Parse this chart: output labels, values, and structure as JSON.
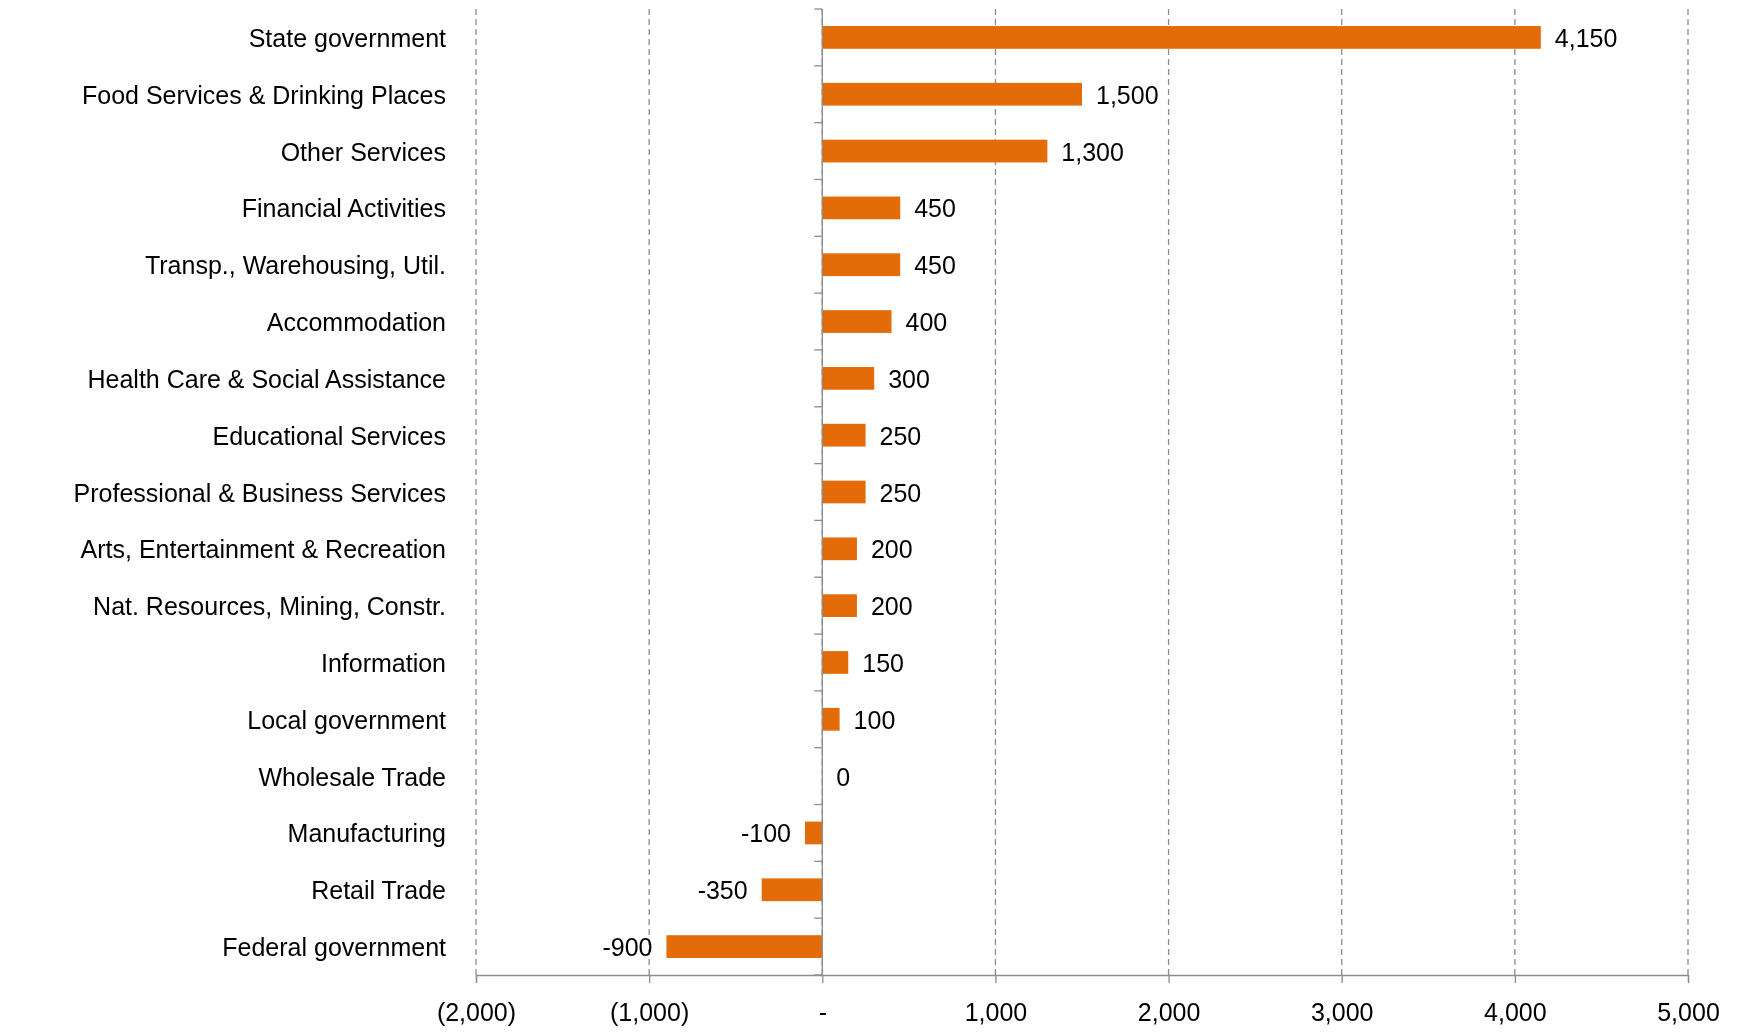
{
  "chart_data": {
    "type": "bar",
    "orientation": "horizontal",
    "categories": [
      "State government",
      "Food Services & Drinking Places",
      "Other Services",
      "Financial Activities",
      "Transp., Warehousing, Util.",
      "Accommodation",
      "Health Care & Social Assistance",
      "Educational Services",
      "Professional & Business Services",
      "Arts, Entertainment & Recreation",
      "Nat. Resources, Mining, Constr.",
      "Information",
      "Local government",
      "Wholesale Trade",
      "Manufacturing",
      "Retail Trade",
      "Federal government"
    ],
    "values": [
      4150,
      1500,
      1300,
      450,
      450,
      400,
      300,
      250,
      250,
      200,
      200,
      150,
      100,
      0,
      -100,
      -350,
      -900
    ],
    "value_labels": [
      "4,150",
      "1,500",
      "1,300",
      "450",
      "450",
      "400",
      "300",
      "250",
      "250",
      "200",
      "200",
      "150",
      "100",
      "0",
      "-100",
      "-350",
      "-900"
    ],
    "color": "#e36c09",
    "xlim": [
      -2000,
      5000
    ],
    "xticks": [
      {
        "value": -2000,
        "label": "(2,000)"
      },
      {
        "value": -1000,
        "label": "(1,000)"
      },
      {
        "value": 0,
        "label": "-"
      },
      {
        "value": 1000,
        "label": "1,000"
      },
      {
        "value": 2000,
        "label": "2,000"
      },
      {
        "value": 3000,
        "label": "3,000"
      },
      {
        "value": 4000,
        "label": "4,000"
      },
      {
        "value": 5000,
        "label": "5,000"
      }
    ],
    "grid": "x",
    "line_style": "dashed"
  }
}
